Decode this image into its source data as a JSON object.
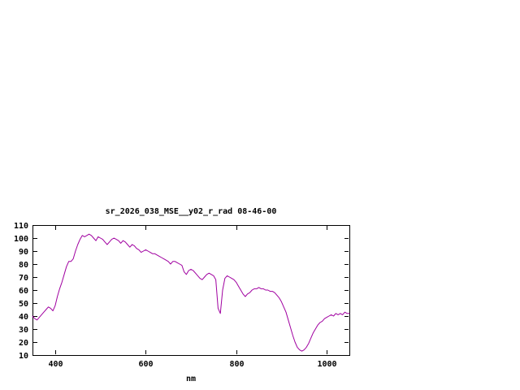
{
  "window": {
    "background": "#ffffff"
  },
  "chart_data": {
    "type": "line",
    "title": "sr_2026_038_MSE__y02_r_rad 08-46-00",
    "xlabel": "nm",
    "ylabel": "",
    "xlim": [
      350,
      1050
    ],
    "ylim": [
      10,
      110
    ],
    "x_ticks": [
      400,
      600,
      800,
      1000
    ],
    "y_ticks": [
      10,
      20,
      30,
      40,
      50,
      60,
      70,
      80,
      90,
      100,
      110
    ],
    "grid": false,
    "legend": "none",
    "line_color": "#a000a0",
    "axis_color": "#000000",
    "x": [
      350,
      355,
      360,
      365,
      370,
      375,
      380,
      385,
      390,
      395,
      400,
      405,
      410,
      415,
      420,
      425,
      430,
      435,
      440,
      445,
      450,
      455,
      460,
      465,
      470,
      475,
      480,
      485,
      490,
      495,
      500,
      505,
      510,
      515,
      520,
      525,
      530,
      535,
      540,
      545,
      550,
      555,
      560,
      565,
      570,
      575,
      580,
      585,
      590,
      595,
      600,
      605,
      610,
      615,
      620,
      625,
      630,
      635,
      640,
      645,
      650,
      655,
      660,
      665,
      670,
      675,
      680,
      685,
      690,
      695,
      700,
      705,
      710,
      715,
      720,
      725,
      730,
      735,
      740,
      745,
      750,
      755,
      760,
      765,
      770,
      775,
      780,
      785,
      790,
      795,
      800,
      805,
      810,
      815,
      820,
      825,
      830,
      835,
      840,
      845,
      850,
      855,
      860,
      865,
      870,
      875,
      880,
      885,
      890,
      895,
      900,
      905,
      910,
      915,
      920,
      925,
      930,
      935,
      940,
      945,
      950,
      955,
      960,
      965,
      970,
      975,
      980,
      985,
      990,
      995,
      1000,
      1005,
      1010,
      1015,
      1020,
      1025,
      1030,
      1035,
      1040,
      1045,
      1050
    ],
    "values": [
      40,
      38,
      37,
      39,
      41,
      43,
      45,
      47,
      46,
      44,
      48,
      55,
      61,
      66,
      72,
      78,
      82,
      82,
      84,
      90,
      95,
      99,
      102,
      101,
      102,
      103,
      102,
      100,
      98,
      101,
      100,
      99,
      97,
      95,
      97,
      99,
      100,
      99,
      98,
      96,
      98,
      97,
      95,
      93,
      95,
      94,
      92,
      91,
      89,
      90,
      91,
      90,
      89,
      88,
      88,
      87,
      86,
      85,
      84,
      83,
      82,
      80,
      82,
      82,
      81,
      80,
      79,
      74,
      72,
      75,
      76,
      75,
      73,
      71,
      69,
      68,
      70,
      72,
      73,
      72,
      71,
      68,
      46,
      42,
      60,
      69,
      71,
      70,
      69,
      68,
      66,
      63,
      60,
      57,
      55,
      57,
      58,
      60,
      61,
      61,
      62,
      61,
      61,
      60,
      60,
      59,
      59,
      58,
      56,
      54,
      51,
      47,
      43,
      37,
      31,
      25,
      20,
      16,
      14,
      13,
      14,
      16,
      19,
      23,
      27,
      30,
      33,
      35,
      36,
      38,
      39,
      40,
      41,
      40,
      42,
      41,
      42,
      41,
      43,
      42,
      42
    ]
  }
}
